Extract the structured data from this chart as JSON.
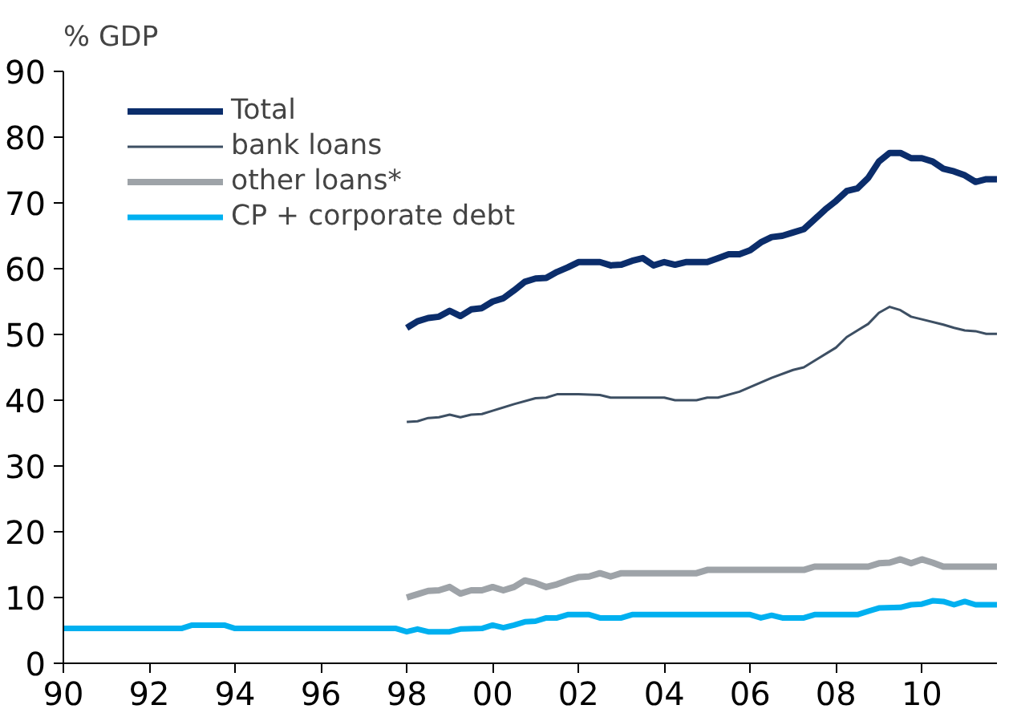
{
  "chart_data": {
    "type": "line",
    "ylabel": "% GDP",
    "xlim": [
      1990,
      2011.75
    ],
    "ylim": [
      0,
      90
    ],
    "xticks": [
      {
        "value": 1990,
        "label": "90"
      },
      {
        "value": 1992,
        "label": "92"
      },
      {
        "value": 1994,
        "label": "94"
      },
      {
        "value": 1996,
        "label": "96"
      },
      {
        "value": 1998,
        "label": "98"
      },
      {
        "value": 2000,
        "label": "00"
      },
      {
        "value": 2002,
        "label": "02"
      },
      {
        "value": 2004,
        "label": "04"
      },
      {
        "value": 2006,
        "label": "06"
      },
      {
        "value": 2008,
        "label": "08"
      },
      {
        "value": 2010,
        "label": "10"
      }
    ],
    "yticks": [
      0,
      10,
      20,
      30,
      40,
      50,
      60,
      70,
      80,
      90
    ],
    "grid": false,
    "legend": "top left",
    "series": [
      {
        "name": "Total",
        "color": "#0b2d6b",
        "x": [
          1998,
          1998.25,
          1998.5,
          1998.75,
          1999,
          1999.25,
          1999.5,
          1999.75,
          2000,
          2000.25,
          2000.5,
          2000.75,
          2001,
          2001.25,
          2001.5,
          2001.75,
          2002,
          2002.5,
          2002.75,
          2003,
          2003.25,
          2003.5,
          2003.75,
          2004,
          2004.25,
          2004.5,
          2005,
          2005.25,
          2005.5,
          2005.75,
          2006,
          2006.25,
          2006.5,
          2006.75,
          2007,
          2007.25,
          2007.5,
          2007.75,
          2008,
          2008.25,
          2008.5,
          2008.75,
          2009,
          2009.25,
          2009.5,
          2009.75,
          2010,
          2010.25,
          2010.5,
          2010.75,
          2011,
          2011.25,
          2011.5,
          2011.75
        ],
        "values": [
          51,
          52,
          52.5,
          52.7,
          53.6,
          52.8,
          53.8,
          54,
          55,
          55.5,
          56.7,
          58,
          58.5,
          58.6,
          59.5,
          60.2,
          61,
          61,
          60.5,
          60.6,
          61.2,
          61.6,
          60.5,
          61,
          60.6,
          61,
          61,
          61.6,
          62.2,
          62.2,
          62.8,
          64,
          64.8,
          65,
          65.5,
          66,
          67.5,
          69,
          70.3,
          71.8,
          72.2,
          73.8,
          76.3,
          77.6,
          77.6,
          76.8,
          76.8,
          76.3,
          75.2,
          74.8,
          74.2,
          73.2,
          73.6,
          73.6
        ]
      },
      {
        "name": "bank loans",
        "color": "#3d4f63",
        "x": [
          1998,
          1998.25,
          1998.5,
          1998.75,
          1999,
          1999.25,
          1999.5,
          1999.75,
          2000,
          2000.5,
          2001,
          2001.25,
          2001.5,
          2002,
          2002.5,
          2002.75,
          2003,
          2004,
          2004.25,
          2004.75,
          2005,
          2005.25,
          2005.75,
          2006,
          2006.5,
          2007,
          2007.25,
          2007.5,
          2008,
          2008.25,
          2008.5,
          2008.75,
          2009,
          2009.25,
          2009.5,
          2009.75,
          2010,
          2010.5,
          2010.75,
          2011,
          2011.25,
          2011.5,
          2011.75
        ],
        "values": [
          36.7,
          36.8,
          37.3,
          37.4,
          37.8,
          37.4,
          37.8,
          37.9,
          38.4,
          39.4,
          40.3,
          40.4,
          40.9,
          40.9,
          40.8,
          40.4,
          40.4,
          40.4,
          40,
          40,
          40.4,
          40.4,
          41.3,
          42,
          43.4,
          44.6,
          45,
          46,
          48,
          49.6,
          50.6,
          51.6,
          53.3,
          54.2,
          53.7,
          52.7,
          52.3,
          51.5,
          51,
          50.6,
          50.5,
          50.1,
          50.1
        ]
      },
      {
        "name": "other loans*",
        "color": "#9ea3a8",
        "x": [
          1998,
          1998.25,
          1998.5,
          1998.75,
          1999,
          1999.25,
          1999.5,
          1999.75,
          2000,
          2000.25,
          2000.5,
          2000.75,
          2001,
          2001.25,
          2001.5,
          2001.75,
          2002,
          2002.25,
          2002.5,
          2002.75,
          2003,
          2004.75,
          2005,
          2007.25,
          2007.5,
          2008.75,
          2009,
          2009.25,
          2009.5,
          2009.75,
          2010,
          2010.25,
          2010.5,
          2011.75
        ],
        "values": [
          10,
          10.5,
          11,
          11.1,
          11.6,
          10.6,
          11.1,
          11.1,
          11.6,
          11.1,
          11.6,
          12.6,
          12.2,
          11.6,
          12,
          12.6,
          13.1,
          13.2,
          13.7,
          13.2,
          13.7,
          13.7,
          14.2,
          14.2,
          14.7,
          14.7,
          15.2,
          15.3,
          15.8,
          15.2,
          15.8,
          15.3,
          14.7,
          14.7
        ]
      },
      {
        "name": "CP + corporate debt",
        "color": "#00b0f0",
        "x": [
          1990,
          1992.75,
          1993,
          1993.75,
          1994,
          1997.75,
          1998,
          1998.25,
          1998.5,
          1999,
          1999.25,
          1999.75,
          2000,
          2000.25,
          2000.5,
          2000.75,
          2001,
          2001.25,
          2001.5,
          2001.75,
          2002.25,
          2002.5,
          2003,
          2003.25,
          2006,
          2006.25,
          2006.5,
          2006.75,
          2007.25,
          2007.5,
          2008.5,
          2008.75,
          2009,
          2009.5,
          2009.75,
          2010,
          2010.25,
          2010.5,
          2010.75,
          2011,
          2011.25,
          2011.75
        ],
        "values": [
          5.3,
          5.3,
          5.8,
          5.8,
          5.3,
          5.3,
          4.8,
          5.2,
          4.8,
          4.8,
          5.2,
          5.3,
          5.8,
          5.4,
          5.8,
          6.3,
          6.4,
          6.9,
          6.9,
          7.4,
          7.4,
          6.9,
          6.9,
          7.4,
          7.4,
          6.9,
          7.3,
          6.9,
          6.9,
          7.4,
          7.4,
          7.9,
          8.4,
          8.5,
          8.9,
          9,
          9.5,
          9.4,
          8.9,
          9.4,
          8.9,
          8.9
        ]
      }
    ]
  }
}
